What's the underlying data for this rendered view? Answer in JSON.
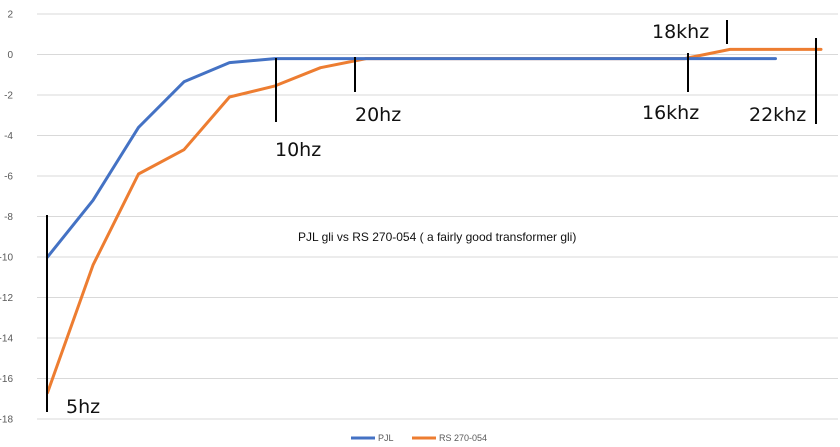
{
  "chart_data": {
    "type": "line",
    "title": "",
    "xlabel": "",
    "ylabel": "",
    "ylim": [
      -18,
      2
    ],
    "yticks": [
      2,
      0,
      -2,
      -4,
      -6,
      -8,
      -10,
      -12,
      -14,
      -16,
      -18
    ],
    "grid": true,
    "legend_position": "bottom",
    "series": [
      {
        "name": "PJL",
        "color": "#4472c4",
        "values": [
          -10,
          -7.2,
          -3.6,
          -1.35,
          -0.4,
          -0.2,
          -0.2,
          -0.2,
          -0.2,
          -0.2,
          -0.2,
          -0.2,
          -0.2,
          -0.2,
          -0.2,
          -0.2,
          -0.2
        ]
      },
      {
        "name": "RS 270-054",
        "color": "#ed7d31",
        "values": [
          -16.7,
          -10.4,
          -5.9,
          -4.7,
          -2.1,
          -1.55,
          -0.65,
          -0.2,
          -0.2,
          -0.2,
          -0.2,
          -0.2,
          -0.2,
          -0.2,
          -0.2,
          0.25,
          0.25,
          0.25
        ]
      }
    ],
    "annotations": {
      "note": "PJL gli  vs RS 270-054 ( a fairly good transformer gli)",
      "labels": [
        "5hz",
        "10hz",
        "20hz",
        "16khz",
        "18khz",
        "22khz"
      ]
    }
  }
}
